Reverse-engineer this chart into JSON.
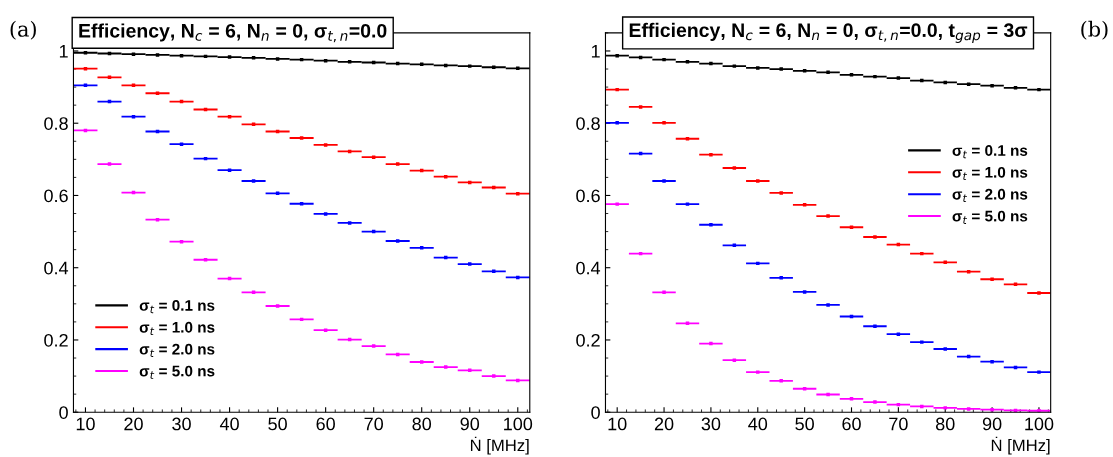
{
  "chart_data": [
    {
      "type": "scatter",
      "title": "Efficiency, N$_{c}$ = 6, N$_{n}$ = 0, σ$_{t,n}$=0.0",
      "xlabel": "Ṅ [MHz]",
      "annotations": [
        "(a)"
      ],
      "x": [
        10,
        15,
        20,
        25,
        30,
        35,
        40,
        45,
        50,
        55,
        60,
        65,
        70,
        75,
        80,
        85,
        90,
        95,
        100
      ],
      "legend": "bottom left",
      "marker": "square",
      "grid": false,
      "xlim": [
        7.5,
        102.5
      ],
      "xticks": [
        10,
        20,
        30,
        40,
        50,
        60,
        70,
        80,
        90,
        100
      ],
      "ylim": [
        0,
        1.05
      ],
      "yticks": [
        0,
        0.2,
        0.4,
        0.6,
        0.8,
        1
      ],
      "series": [
        {
          "name": "σ$_{t}$ = 0.1 ns",
          "color": "#000000",
          "values": [
            0.995,
            0.993,
            0.991,
            0.989,
            0.987,
            0.985,
            0.983,
            0.981,
            0.978,
            0.976,
            0.973,
            0.97,
            0.968,
            0.965,
            0.963,
            0.96,
            0.958,
            0.955,
            0.952
          ],
          "xerrors": [
            2.5,
            2.5,
            2.5,
            2.5,
            2.5,
            2.5,
            2.5,
            2.5,
            2.5,
            2.5,
            2.5,
            2.5,
            2.5,
            2.5,
            2.5,
            2.5,
            2.5,
            2.5,
            2.5
          ]
        },
        {
          "name": "σ$_{t}$ = 1.0 ns",
          "color": "#ff0000",
          "values": [
            0.951,
            0.927,
            0.905,
            0.883,
            0.86,
            0.838,
            0.818,
            0.797,
            0.777,
            0.759,
            0.74,
            0.722,
            0.706,
            0.687,
            0.669,
            0.652,
            0.636,
            0.622,
            0.605
          ],
          "xerrors": [
            2.5,
            2.5,
            2.5,
            2.5,
            2.5,
            2.5,
            2.5,
            2.5,
            2.5,
            2.5,
            2.5,
            2.5,
            2.5,
            2.5,
            2.5,
            2.5,
            2.5,
            2.5,
            2.5
          ]
        },
        {
          "name": "σ$_{t}$ = 2.0 ns",
          "color": "#0000ff",
          "values": [
            0.905,
            0.86,
            0.818,
            0.777,
            0.742,
            0.702,
            0.67,
            0.64,
            0.606,
            0.577,
            0.549,
            0.524,
            0.5,
            0.474,
            0.455,
            0.428,
            0.41,
            0.39,
            0.373
          ],
          "xerrors": [
            2.5,
            2.5,
            2.5,
            2.5,
            2.5,
            2.5,
            2.5,
            2.5,
            2.5,
            2.5,
            2.5,
            2.5,
            2.5,
            2.5,
            2.5,
            2.5,
            2.5,
            2.5,
            2.5
          ]
        },
        {
          "name": "σ$_{t}$ = 5.0 ns",
          "color": "#ff00ff",
          "values": [
            0.78,
            0.687,
            0.608,
            0.533,
            0.472,
            0.422,
            0.37,
            0.332,
            0.294,
            0.257,
            0.227,
            0.201,
            0.183,
            0.16,
            0.139,
            0.125,
            0.116,
            0.1,
            0.088
          ],
          "xerrors": [
            2.5,
            2.5,
            2.5,
            2.5,
            2.5,
            2.5,
            2.5,
            2.5,
            2.5,
            2.5,
            2.5,
            2.5,
            2.5,
            2.5,
            2.5,
            2.5,
            2.5,
            2.5,
            2.5
          ]
        }
      ]
    },
    {
      "type": "scatter",
      "title": "Efficiency, N$_{c}$ = 6, N$_{n}$ = 0, σ$_{t,n}$=0.0, t$_{gap}$ = 3σ",
      "xlabel": "Ṅ [MHz]",
      "annotations": [
        "(b)"
      ],
      "x": [
        10,
        15,
        20,
        25,
        30,
        35,
        40,
        45,
        50,
        55,
        60,
        65,
        70,
        75,
        80,
        85,
        90,
        95,
        100
      ],
      "legend": "right",
      "marker": "square",
      "grid": false,
      "xlim": [
        7.5,
        102.5
      ],
      "xticks": [
        10,
        20,
        30,
        40,
        50,
        60,
        70,
        80,
        90,
        100
      ],
      "ylim": [
        0,
        1.05
      ],
      "yticks": [
        0,
        0.2,
        0.4,
        0.6,
        0.8,
        1
      ],
      "series": [
        {
          "name": "σ$_{t}$ = 0.1 ns",
          "color": "#000000",
          "values": [
            0.987,
            0.982,
            0.976,
            0.97,
            0.965,
            0.958,
            0.953,
            0.95,
            0.945,
            0.941,
            0.934,
            0.929,
            0.925,
            0.918,
            0.913,
            0.908,
            0.904,
            0.898,
            0.893
          ],
          "xerrors": [
            2.5,
            2.5,
            2.5,
            2.5,
            2.5,
            2.5,
            2.5,
            2.5,
            2.5,
            2.5,
            2.5,
            2.5,
            2.5,
            2.5,
            2.5,
            2.5,
            2.5,
            2.5,
            2.5
          ]
        },
        {
          "name": "σ$_{t}$ = 1.0 ns",
          "color": "#ff0000",
          "values": [
            0.893,
            0.845,
            0.801,
            0.757,
            0.713,
            0.676,
            0.64,
            0.607,
            0.574,
            0.543,
            0.512,
            0.485,
            0.464,
            0.439,
            0.415,
            0.389,
            0.368,
            0.354,
            0.33
          ],
          "xerrors": [
            2.5,
            2.5,
            2.5,
            2.5,
            2.5,
            2.5,
            2.5,
            2.5,
            2.5,
            2.5,
            2.5,
            2.5,
            2.5,
            2.5,
            2.5,
            2.5,
            2.5,
            2.5,
            2.5
          ]
        },
        {
          "name": "σ$_{t}$ = 2.0 ns",
          "color": "#0000ff",
          "values": [
            0.801,
            0.716,
            0.64,
            0.576,
            0.519,
            0.462,
            0.412,
            0.372,
            0.333,
            0.297,
            0.265,
            0.238,
            0.216,
            0.194,
            0.175,
            0.154,
            0.14,
            0.124,
            0.111
          ],
          "xerrors": [
            2.5,
            2.5,
            2.5,
            2.5,
            2.5,
            2.5,
            2.5,
            2.5,
            2.5,
            2.5,
            2.5,
            2.5,
            2.5,
            2.5,
            2.5,
            2.5,
            2.5,
            2.5,
            2.5
          ]
        },
        {
          "name": "σ$_{t}$ = 5.0 ns",
          "color": "#ff00ff",
          "values": [
            0.576,
            0.439,
            0.332,
            0.246,
            0.19,
            0.144,
            0.111,
            0.087,
            0.065,
            0.049,
            0.037,
            0.028,
            0.021,
            0.016,
            0.012,
            0.009,
            0.007,
            0.005,
            0.004
          ],
          "xerrors": [
            2.5,
            2.5,
            2.5,
            2.5,
            2.5,
            2.5,
            2.5,
            2.5,
            2.5,
            2.5,
            2.5,
            2.5,
            2.5,
            2.5,
            2.5,
            2.5,
            2.5,
            2.5,
            2.5
          ]
        }
      ]
    }
  ]
}
